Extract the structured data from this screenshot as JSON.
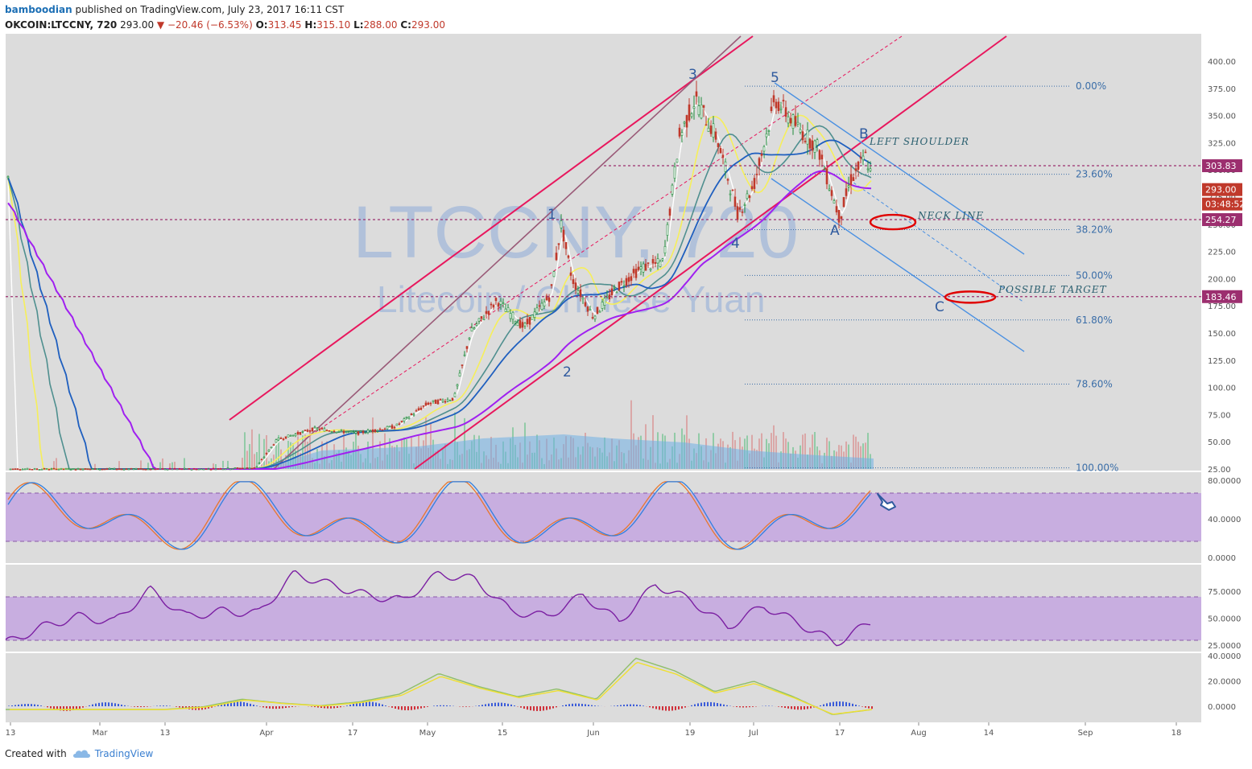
{
  "header": {
    "author": "bamboodian",
    "published": "published on TradingView.com, July 23, 2017 16:11 CST",
    "symbol": "OKCOIN:LTCCNY, 720",
    "last": "293.00",
    "down_arrow": "▼",
    "change": "−20.46 (−6.53%)",
    "o_label": "O:",
    "o_val": "313.45",
    "h_label": "H:",
    "h_val": "315.10",
    "l_label": "L:",
    "l_val": "288.00",
    "c_label": "C:",
    "c_val": "293.00"
  },
  "footer": {
    "created_with": "Created with",
    "brand": "TradingView"
  },
  "watermark": {
    "symbol": "LTCCNY, 720",
    "name": "Litecoin / Chinese Yuan"
  },
  "colors": {
    "panel_bg": "#dcdcdc",
    "band": "#c8aee0",
    "up": "#1e8b3a",
    "down": "#c0392b",
    "channel": "#e8175d",
    "wma": "#f6ef5a",
    "ma_teal": "#4f8f8f",
    "ma_blue": "#1f5fbf",
    "ma_purple": "#a020f0",
    "fib": "#3b6ea8",
    "red_tag": "#c0392b",
    "purple_tag": "#9c2f6f"
  },
  "chart_data": [
    {
      "type": "candlestick",
      "title": "",
      "x_ticks": [
        "13",
        "Mar",
        "13",
        "Apr",
        "17",
        "May",
        "15",
        "Jun",
        "19",
        "Jul",
        "17",
        "Aug",
        "14",
        "Sep",
        "18"
      ],
      "y_ticks": [
        "400.00",
        "375.00",
        "350.00",
        "325.00",
        "300.00",
        "275.00",
        "250.00",
        "225.00",
        "200.00",
        "175.00",
        "150.00",
        "125.00",
        "100.00",
        "75.00",
        "50.00",
        "25.00"
      ],
      "ylim": [
        25,
        405
      ],
      "price_path": [
        [
          "Feb 10",
          25
        ],
        [
          "Mar 1",
          25
        ],
        [
          "Mar 20",
          25
        ],
        [
          "Mar 30",
          26
        ],
        [
          "Apr 3",
          52
        ],
        [
          "Apr 10",
          62
        ],
        [
          "Apr 18",
          58
        ],
        [
          "Apr 25",
          64
        ],
        [
          "May 1",
          85
        ],
        [
          "May 6",
          90
        ],
        [
          "May 9",
          150
        ],
        [
          "May 14",
          180
        ],
        [
          "May 19",
          155
        ],
        [
          "May 24",
          185
        ],
        [
          "May 26",
          250
        ],
        [
          "May 28",
          200
        ],
        [
          "Jun 1",
          165
        ],
        [
          "Jun 5",
          190
        ],
        [
          "Jun 10",
          210
        ],
        [
          "Jun 14",
          215
        ],
        [
          "Jun 17",
          330
        ],
        [
          "Jun 20",
          365
        ],
        [
          "Jun 24",
          330
        ],
        [
          "Jun 28",
          260
        ],
        [
          "Jul 1",
          285
        ],
        [
          "Jul 5",
          365
        ],
        [
          "Jul 9",
          340
        ],
        [
          "Jul 13",
          320
        ],
        [
          "Jul 17",
          255
        ],
        [
          "Jul 19",
          290
        ],
        [
          "Jul 22",
          313
        ],
        [
          "Jul 23",
          293
        ]
      ],
      "price_tags": [
        "303.83",
        "293.00",
        "03:48:52",
        "254.27",
        "183.46"
      ],
      "fibonacci": [
        {
          "level": "0.00%",
          "price": 377
        },
        {
          "level": "23.60%",
          "price": 296
        },
        {
          "level": "38.20%",
          "price": 245
        },
        {
          "level": "50.00%",
          "price": 203
        },
        {
          "level": "61.80%",
          "price": 162
        },
        {
          "level": "78.60%",
          "price": 103
        },
        {
          "level": "100.00%",
          "price": 26
        }
      ],
      "wave_labels": [
        "1",
        "2",
        "3",
        "4",
        "5",
        "A",
        "B",
        "C"
      ],
      "annotations": [
        "LEFT SHOULDER",
        "NECK LINE",
        "POSSIBLE TARGET"
      ]
    },
    {
      "type": "line",
      "title": "",
      "y_ticks": [
        "80.0000",
        "40.0000",
        "0.0000"
      ],
      "ylim": [
        0,
        100
      ],
      "bands": [
        20,
        80
      ],
      "series": [
        {
          "values": [
            5,
            90,
            20,
            88,
            10,
            85,
            15,
            90,
            10,
            88,
            12,
            88,
            5,
            92,
            10,
            85,
            30,
            92,
            8,
            90,
            5,
            95,
            50,
            60
          ]
        }
      ]
    },
    {
      "type": "line",
      "title": "",
      "y_ticks": [
        "75.0000",
        "50.0000",
        "25.0000"
      ],
      "ylim": [
        25,
        100
      ],
      "bands": [
        30,
        70
      ],
      "series": [
        {
          "values": [
            30,
            45,
            55,
            50,
            80,
            55,
            60,
            58,
            95,
            85,
            75,
            70,
            95,
            90,
            60,
            55,
            75,
            50,
            85,
            70,
            45,
            65,
            48,
            30,
            50
          ]
        }
      ]
    },
    {
      "type": "line",
      "title": "",
      "y_ticks": [
        "40.0000",
        "20.0000",
        "0.0000"
      ],
      "ylim": [
        -10,
        42
      ],
      "series": [
        {
          "values": [
            0,
            0,
            0,
            0,
            0,
            2,
            8,
            5,
            3,
            6,
            12,
            28,
            18,
            10,
            16,
            8,
            40,
            30,
            14,
            22,
            10,
            -4,
            0
          ]
        }
      ]
    }
  ]
}
